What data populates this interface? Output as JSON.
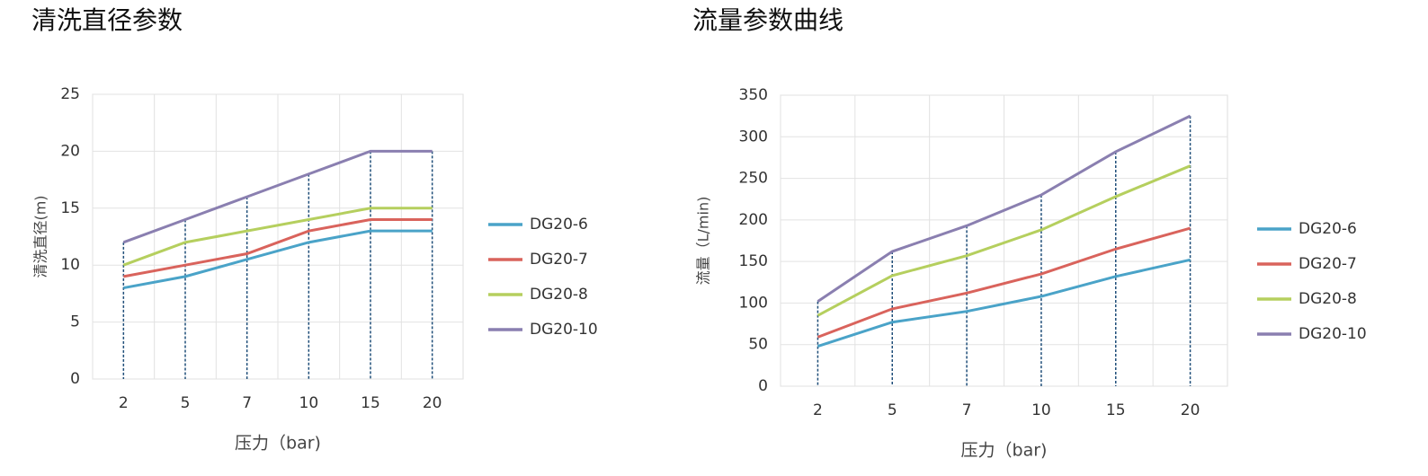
{
  "chart_data": [
    {
      "type": "line",
      "title": "清洗直径参数",
      "y_label": "清洗直径(m)",
      "x_label": "压力（bar)",
      "categories": [
        "2",
        "5",
        "7",
        "10",
        "15",
        "20"
      ],
      "ylim": [
        0,
        25
      ],
      "yticks": [
        0,
        5,
        10,
        15,
        20,
        25
      ],
      "grid": true,
      "series": [
        {
          "name": "DG20-6",
          "color": "#4aa3c8",
          "values": [
            8,
            9,
            10.5,
            12,
            13,
            13
          ]
        },
        {
          "name": "DG20-7",
          "color": "#d9635c",
          "values": [
            9,
            10,
            11,
            13,
            14,
            14
          ]
        },
        {
          "name": "DG20-8",
          "color": "#b5cf5e",
          "values": [
            10,
            12,
            13,
            14,
            15,
            15
          ]
        },
        {
          "name": "DG20-10",
          "color": "#8a7fb0",
          "values": [
            12,
            14,
            16,
            18,
            20,
            20
          ]
        }
      ]
    },
    {
      "type": "line",
      "title": "流量参数曲线",
      "y_label": "流量（L/min)",
      "x_label": "压力（bar)",
      "categories": [
        "2",
        "5",
        "7",
        "10",
        "15",
        "20"
      ],
      "ylim": [
        0,
        350
      ],
      "yticks": [
        0,
        50,
        100,
        150,
        200,
        250,
        300,
        350
      ],
      "grid": true,
      "series": [
        {
          "name": "DG20-6",
          "color": "#4aa3c8",
          "values": [
            48,
            77,
            90,
            108,
            132,
            152
          ]
        },
        {
          "name": "DG20-7",
          "color": "#d9635c",
          "values": [
            59,
            93,
            112,
            135,
            165,
            190
          ]
        },
        {
          "name": "DG20-8",
          "color": "#b5cf5e",
          "values": [
            85,
            133,
            157,
            188,
            228,
            265
          ]
        },
        {
          "name": "DG20-10",
          "color": "#8a7fb0",
          "values": [
            102,
            162,
            193,
            230,
            282,
            325
          ]
        }
      ]
    }
  ]
}
